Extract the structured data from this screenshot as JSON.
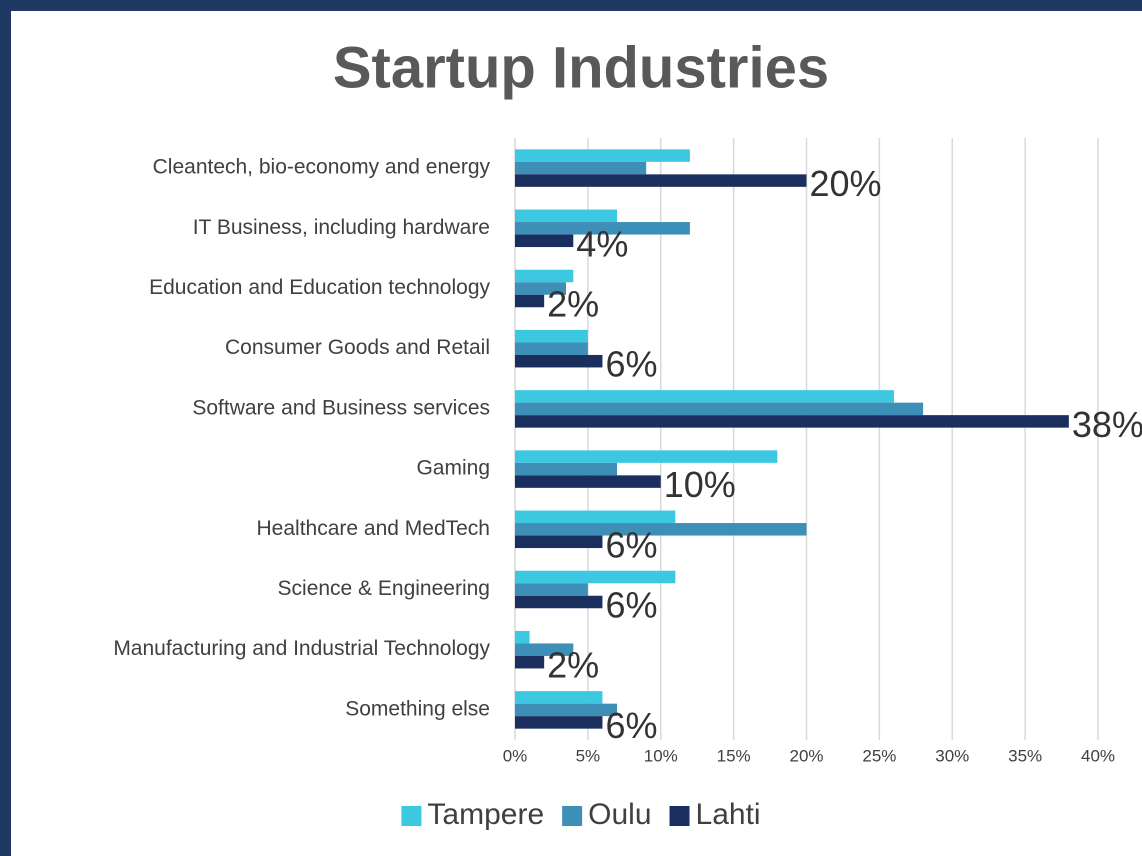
{
  "chart_data": {
    "type": "hbar",
    "title": "Startup Industries",
    "categories": [
      "Cleantech, bio-economy and energy",
      "IT Business, including hardware",
      "Education and Education technology",
      "Consumer Goods and Retail",
      "Software and Business services",
      "Gaming",
      "Healthcare and MedTech",
      "Science & Engineering",
      "Manufacturing and Industrial Technology",
      "Something else"
    ],
    "series": [
      {
        "name": "Tampere",
        "color": "#3cc8e1",
        "values": [
          12,
          7,
          4,
          5,
          26,
          18,
          11,
          11,
          1,
          6
        ]
      },
      {
        "name": "Oulu",
        "color": "#3d8fb8",
        "values": [
          9,
          12,
          3.5,
          5,
          28,
          7,
          20,
          5,
          4,
          7
        ]
      },
      {
        "name": "Lahti",
        "color": "#1b2f5e",
        "values": [
          20,
          4,
          2,
          6,
          38,
          10,
          6,
          6,
          2,
          6
        ],
        "value_labels": [
          "20%",
          "4%",
          "2%",
          "6%",
          "38%",
          "10%",
          "6%",
          "6%",
          "2%",
          "6%"
        ]
      }
    ],
    "xlim": [
      0,
      40
    ],
    "xticks": [
      {
        "value": 0,
        "label": "0%"
      },
      {
        "value": 5,
        "label": "5%"
      },
      {
        "value": 10,
        "label": "10%"
      },
      {
        "value": 15,
        "label": "15%"
      },
      {
        "value": 20,
        "label": "20%"
      },
      {
        "value": 25,
        "label": "25%"
      },
      {
        "value": 30,
        "label": "30%"
      },
      {
        "value": 35,
        "label": "35%"
      },
      {
        "value": 40,
        "label": "40%"
      }
    ],
    "grid": true,
    "legend": "bottom"
  }
}
